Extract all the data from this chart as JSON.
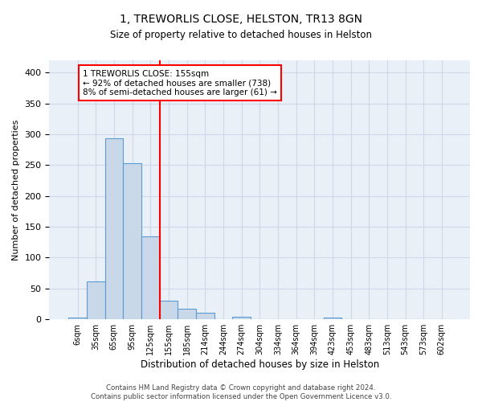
{
  "title1": "1, TREWORLIS CLOSE, HELSTON, TR13 8GN",
  "title2": "Size of property relative to detached houses in Helston",
  "xlabel": "Distribution of detached houses by size in Helston",
  "ylabel": "Number of detached properties",
  "bin_labels": [
    "6sqm",
    "35sqm",
    "65sqm",
    "95sqm",
    "125sqm",
    "155sqm",
    "185sqm",
    "214sqm",
    "244sqm",
    "274sqm",
    "304sqm",
    "334sqm",
    "364sqm",
    "394sqm",
    "423sqm",
    "453sqm",
    "483sqm",
    "513sqm",
    "543sqm",
    "573sqm",
    "602sqm"
  ],
  "bar_values": [
    3,
    62,
    293,
    253,
    134,
    30,
    17,
    11,
    0,
    4,
    0,
    0,
    0,
    0,
    3,
    0,
    0,
    0,
    0,
    0,
    0
  ],
  "bar_color": "#c8d8e8",
  "bar_edge_color": "#5b9bd5",
  "vline_color": "red",
  "annotation_box_text": "1 TREWORLIS CLOSE: 155sqm\n← 92% of detached houses are smaller (738)\n8% of semi-detached houses are larger (61) →",
  "annotation_box_color": "red",
  "grid_color": "#d0d8e8",
  "background_color": "#eaf0f8",
  "ylim": [
    0,
    420
  ],
  "yticks": [
    0,
    50,
    100,
    150,
    200,
    250,
    300,
    350,
    400
  ],
  "footnote": "Contains HM Land Registry data © Crown copyright and database right 2024.\nContains public sector information licensed under the Open Government Licence v3.0."
}
